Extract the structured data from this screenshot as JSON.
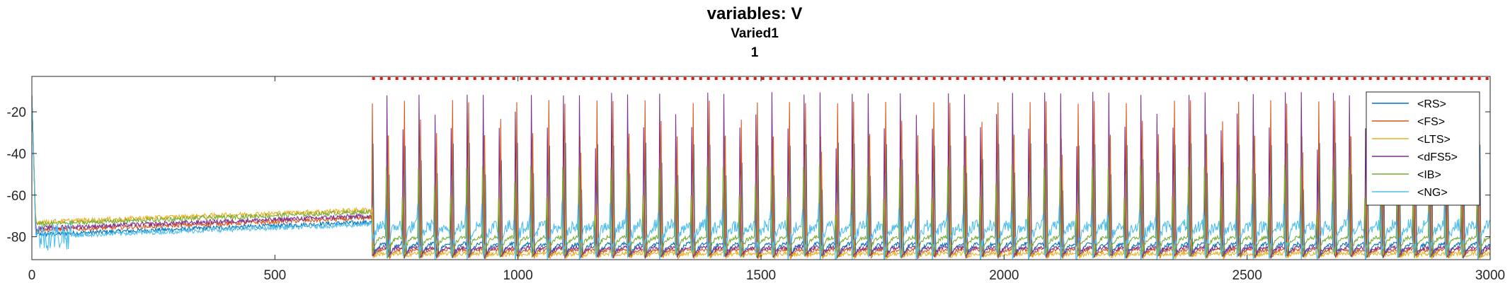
{
  "chart_data": {
    "type": "line",
    "title": "variables: V",
    "subtitle_lines": [
      "Varied1",
      "1"
    ],
    "xlabel": "",
    "ylabel": "",
    "xlim": [
      0,
      3000
    ],
    "ylim": [
      -91,
      -3
    ],
    "x_ticks": [
      0,
      500,
      1000,
      1500,
      2000,
      2500,
      3000
    ],
    "x_tick_labels": [
      "0",
      "500",
      "1000",
      "1500",
      "2000",
      "2500",
      "3000"
    ],
    "y_ticks": [
      -20,
      -40,
      -60,
      -80
    ],
    "y_tick_labels": [
      "-20",
      "-40",
      "-60",
      "-80"
    ],
    "grid": false,
    "legend_position": "top-right",
    "threshold_line": {
      "y": -4,
      "x_start": 700,
      "x_end": 3000,
      "color": "#e8160c",
      "style": "dotted"
    },
    "oscillation": {
      "onset_x": 700,
      "period_ms": 33,
      "peak_v": -8,
      "trough_v": -90
    },
    "series": [
      {
        "name": "<RS>",
        "color": "#0072bd",
        "baseline_pre": -79,
        "baseline_post": -83,
        "spike_peak": -22
      },
      {
        "name": "<FS>",
        "color": "#d95319",
        "baseline_pre": -77,
        "baseline_post": -86,
        "spike_peak": -5
      },
      {
        "name": "<LTS>",
        "color": "#edb120",
        "baseline_pre": -73,
        "baseline_post": -88,
        "spike_peak": -30
      },
      {
        "name": "<dFS5>",
        "color": "#7e2f8e",
        "baseline_pre": -76,
        "baseline_post": -85,
        "spike_peak": -6
      },
      {
        "name": "<IB>",
        "color": "#77ac30",
        "baseline_pre": -74,
        "baseline_post": -80,
        "spike_peak": -38
      },
      {
        "name": "<NG>",
        "color": "#4dbeee",
        "baseline_pre": -80,
        "baseline_post": -74,
        "spike_peak": -62
      }
    ]
  }
}
